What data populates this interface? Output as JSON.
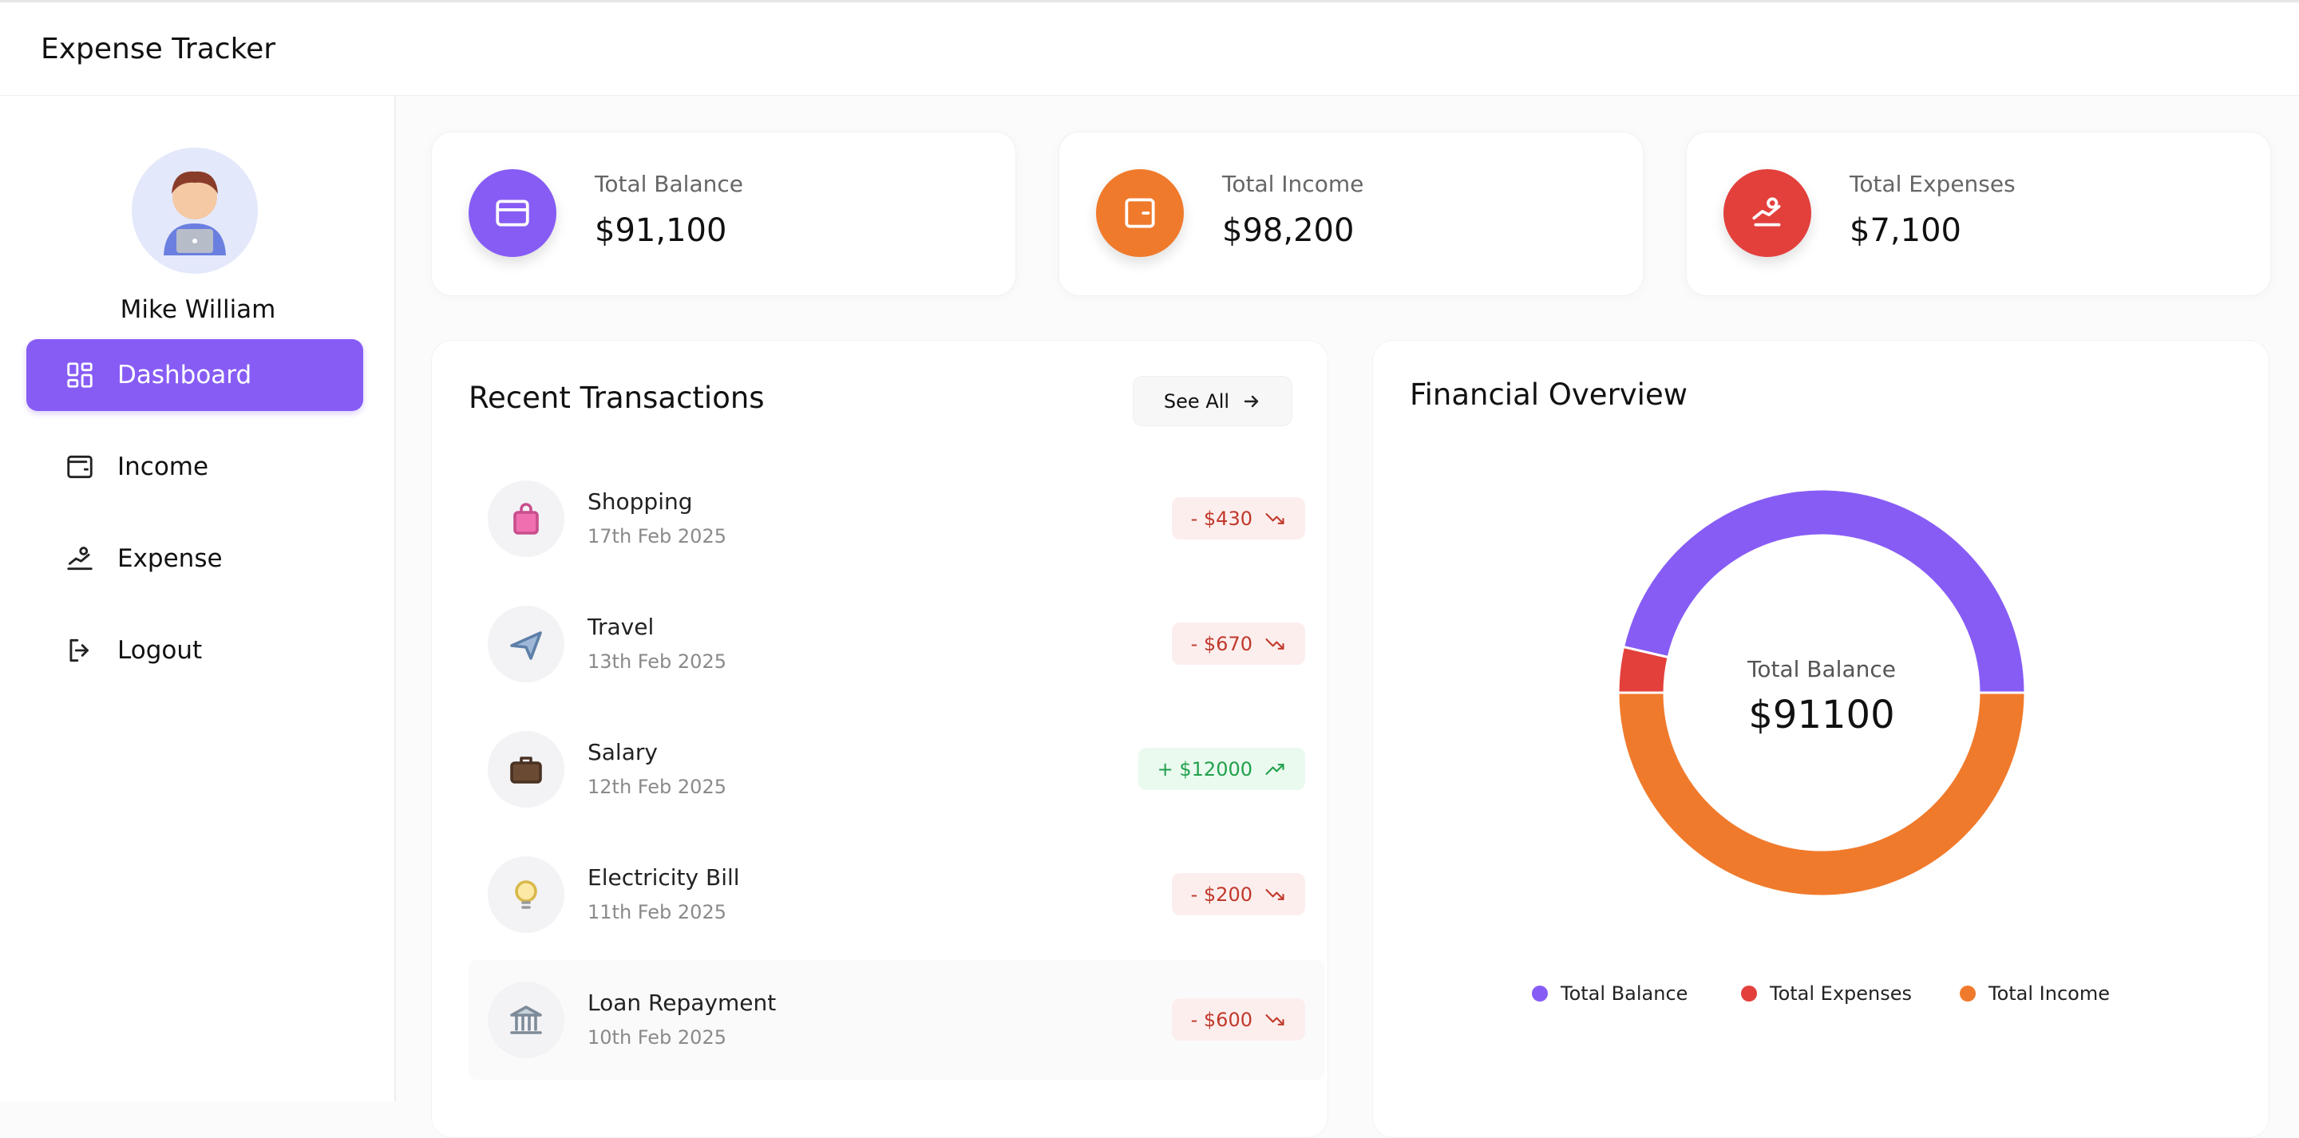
{
  "header": {
    "title": "Expense Tracker"
  },
  "sidebar": {
    "user_name": "Mike William",
    "nav": [
      {
        "label": "Dashboard",
        "active": true
      },
      {
        "label": "Income",
        "active": false
      },
      {
        "label": "Expense",
        "active": false
      },
      {
        "label": "Logout",
        "active": false
      }
    ]
  },
  "cards": [
    {
      "label": "Total Balance",
      "value": "$91,100",
      "color": "#875cf5"
    },
    {
      "label": "Total Income",
      "value": "$98,200",
      "color": "#f07a2c"
    },
    {
      "label": "Total Expenses",
      "value": "$7,100",
      "color": "#e3403c"
    }
  ],
  "recent_transactions": {
    "title": "Recent Transactions",
    "see_all": "See All",
    "items": [
      {
        "name": "Shopping",
        "date": "17th Feb 2025",
        "amount": "- $430",
        "type": "expense"
      },
      {
        "name": "Travel",
        "date": "13th Feb 2025",
        "amount": "- $670",
        "type": "expense"
      },
      {
        "name": "Salary",
        "date": "12th Feb 2025",
        "amount": "+ $12000",
        "type": "income"
      },
      {
        "name": "Electricity Bill",
        "date": "11th Feb 2025",
        "amount": "- $200",
        "type": "expense"
      },
      {
        "name": "Loan Repayment",
        "date": "10th Feb 2025",
        "amount": "- $600",
        "type": "expense"
      }
    ]
  },
  "chart_data": {
    "type": "pie",
    "title": "Financial Overview",
    "center_label": "Total Balance",
    "center_value": "$91100",
    "categories": [
      "Total Balance",
      "Total Expenses",
      "Total Income"
    ],
    "values": [
      91100,
      7100,
      98200
    ],
    "colors": [
      "#875cf5",
      "#e3403c",
      "#f07a2c"
    ]
  }
}
